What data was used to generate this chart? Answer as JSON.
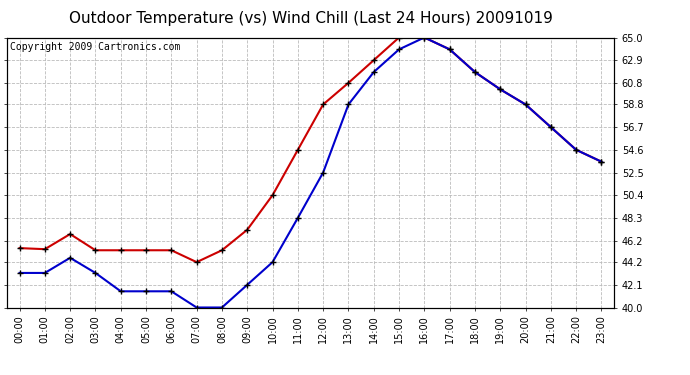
{
  "title": "Outdoor Temperature (vs) Wind Chill (Last 24 Hours) 20091019",
  "copyright": "Copyright 2009 Cartronics.com",
  "hours": [
    "00:00",
    "01:00",
    "02:00",
    "03:00",
    "04:00",
    "05:00",
    "06:00",
    "07:00",
    "08:00",
    "09:00",
    "10:00",
    "11:00",
    "12:00",
    "13:00",
    "14:00",
    "15:00",
    "16:00",
    "17:00",
    "18:00",
    "19:00",
    "20:00",
    "21:00",
    "22:00",
    "23:00"
  ],
  "temp": [
    45.5,
    45.4,
    46.8,
    45.3,
    45.3,
    45.3,
    45.3,
    44.2,
    45.3,
    47.2,
    50.4,
    54.6,
    58.8,
    60.8,
    62.9,
    65.0,
    65.0,
    63.9,
    61.8,
    60.2,
    58.8,
    56.7,
    54.6,
    53.5
  ],
  "windchill": [
    43.2,
    43.2,
    44.6,
    43.2,
    41.5,
    41.5,
    41.5,
    40.0,
    40.0,
    42.1,
    44.2,
    48.3,
    52.5,
    58.8,
    61.8,
    63.9,
    65.0,
    63.9,
    61.8,
    60.2,
    58.8,
    56.7,
    54.6,
    53.5
  ],
  "temp_color": "#cc0000",
  "windchill_color": "#0000cc",
  "marker": "+",
  "marker_color": "#000000",
  "marker_size": 5,
  "line_width": 1.5,
  "ylim": [
    40.0,
    65.0
  ],
  "yticks": [
    40.0,
    42.1,
    44.2,
    46.2,
    48.3,
    50.4,
    52.5,
    54.6,
    56.7,
    58.8,
    60.8,
    62.9,
    65.0
  ],
  "grid_color": "#bbbbbb",
  "grid_style": "--",
  "bg_color": "#ffffff",
  "title_fontsize": 11,
  "copyright_fontsize": 7,
  "tick_fontsize": 7,
  "axis_label_color": "#000000",
  "copyright_color": "#000000"
}
